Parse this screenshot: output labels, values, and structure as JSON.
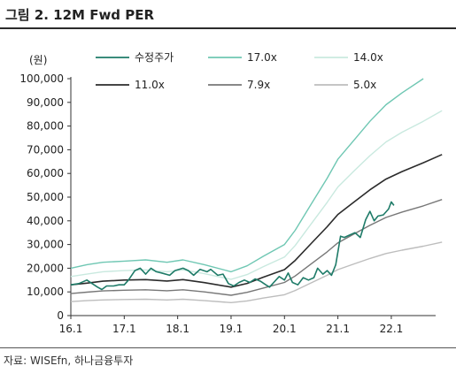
{
  "title": "그림 2. 12M Fwd PER",
  "source": "자료: WISEfn, 하나금융투자",
  "chart_data": {
    "type": "line",
    "unit_label": "(원)",
    "ylim": [
      0,
      100000
    ],
    "yticks": [
      0,
      10000,
      20000,
      30000,
      40000,
      50000,
      60000,
      70000,
      80000,
      90000,
      100000
    ],
    "ytick_labels": [
      "0",
      "10,000",
      "20,000",
      "30,000",
      "40,000",
      "50,000",
      "60,000",
      "70,000",
      "80,000",
      "90,000",
      "100,000"
    ],
    "xlim": [
      2016.0,
      2022.83
    ],
    "xticks": [
      2016.0,
      2017.0,
      2018.0,
      2019.0,
      2020.0,
      2021.0,
      2022.0
    ],
    "xtick_labels": [
      "16.1",
      "17.1",
      "18.1",
      "19.1",
      "20.1",
      "21.1",
      "22.1"
    ],
    "legend_position": "top",
    "series": [
      {
        "name": "수정주가",
        "color": "#1e7b68",
        "width": 1.6,
        "points": [
          [
            2016.0,
            13000
          ],
          [
            2016.15,
            13500
          ],
          [
            2016.3,
            15000
          ],
          [
            2016.4,
            13500
          ],
          [
            2016.5,
            12000
          ],
          [
            2016.58,
            11000
          ],
          [
            2016.67,
            12500
          ],
          [
            2016.8,
            12500
          ],
          [
            2016.9,
            13000
          ],
          [
            2017.0,
            13000
          ],
          [
            2017.08,
            15000
          ],
          [
            2017.2,
            19000
          ],
          [
            2017.3,
            20000
          ],
          [
            2017.4,
            17500
          ],
          [
            2017.5,
            20000
          ],
          [
            2017.6,
            18500
          ],
          [
            2017.7,
            18000
          ],
          [
            2017.85,
            17000
          ],
          [
            2017.95,
            19000
          ],
          [
            2018.1,
            20000
          ],
          [
            2018.2,
            19000
          ],
          [
            2018.3,
            17000
          ],
          [
            2018.42,
            19500
          ],
          [
            2018.55,
            18500
          ],
          [
            2018.62,
            19500
          ],
          [
            2018.75,
            17000
          ],
          [
            2018.85,
            17500
          ],
          [
            2018.95,
            13500
          ],
          [
            2019.05,
            12500
          ],
          [
            2019.15,
            14000
          ],
          [
            2019.25,
            15000
          ],
          [
            2019.35,
            14000
          ],
          [
            2019.45,
            15500
          ],
          [
            2019.55,
            14500
          ],
          [
            2019.65,
            13000
          ],
          [
            2019.72,
            12000
          ],
          [
            2019.8,
            14000
          ],
          [
            2019.9,
            16500
          ],
          [
            2020.0,
            15000
          ],
          [
            2020.07,
            18000
          ],
          [
            2020.15,
            14000
          ],
          [
            2020.25,
            13000
          ],
          [
            2020.35,
            16000
          ],
          [
            2020.45,
            15000
          ],
          [
            2020.55,
            16000
          ],
          [
            2020.62,
            20000
          ],
          [
            2020.72,
            17500
          ],
          [
            2020.8,
            19000
          ],
          [
            2020.88,
            17000
          ],
          [
            2020.96,
            21500
          ],
          [
            2021.05,
            33500
          ],
          [
            2021.12,
            33000
          ],
          [
            2021.22,
            34000
          ],
          [
            2021.32,
            35000
          ],
          [
            2021.42,
            33000
          ],
          [
            2021.52,
            40500
          ],
          [
            2021.6,
            44000
          ],
          [
            2021.68,
            40000
          ],
          [
            2021.75,
            42000
          ],
          [
            2021.85,
            42500
          ],
          [
            2021.95,
            45000
          ],
          [
            2022.0,
            48000
          ],
          [
            2022.05,
            46500
          ]
        ]
      },
      {
        "name": "17.0x",
        "color": "#6fc7b3",
        "width": 1.4,
        "points": [
          [
            2016.0,
            20000
          ],
          [
            2016.3,
            21500
          ],
          [
            2016.6,
            22500
          ],
          [
            2017.0,
            23000
          ],
          [
            2017.4,
            23500
          ],
          [
            2017.8,
            22500
          ],
          [
            2018.1,
            23500
          ],
          [
            2018.5,
            21500
          ],
          [
            2019.0,
            18500
          ],
          [
            2019.3,
            21000
          ],
          [
            2019.6,
            25000
          ],
          [
            2020.0,
            30000
          ],
          [
            2020.2,
            36000
          ],
          [
            2020.5,
            47000
          ],
          [
            2020.8,
            58000
          ],
          [
            2021.0,
            66000
          ],
          [
            2021.3,
            74000
          ],
          [
            2021.6,
            82000
          ],
          [
            2021.9,
            89000
          ],
          [
            2022.2,
            94000
          ],
          [
            2022.6,
            100000
          ]
        ]
      },
      {
        "name": "14.0x",
        "color": "#c9e9df",
        "width": 1.4,
        "points": [
          [
            2016.0,
            16500
          ],
          [
            2016.3,
            17500
          ],
          [
            2016.6,
            18500
          ],
          [
            2017.0,
            19000
          ],
          [
            2017.4,
            19300
          ],
          [
            2017.8,
            18500
          ],
          [
            2018.1,
            19300
          ],
          [
            2018.5,
            17700
          ],
          [
            2019.0,
            15300
          ],
          [
            2019.3,
            17300
          ],
          [
            2019.6,
            20600
          ],
          [
            2020.0,
            24700
          ],
          [
            2020.2,
            29600
          ],
          [
            2020.5,
            38700
          ],
          [
            2020.8,
            47800
          ],
          [
            2021.0,
            54300
          ],
          [
            2021.3,
            61000
          ],
          [
            2021.6,
            67500
          ],
          [
            2021.9,
            73300
          ],
          [
            2022.2,
            77400
          ],
          [
            2022.6,
            82000
          ],
          [
            2022.95,
            86500
          ]
        ]
      },
      {
        "name": "11.0x",
        "color": "#2b2b2b",
        "width": 1.6,
        "points": [
          [
            2016.0,
            13000
          ],
          [
            2016.3,
            13700
          ],
          [
            2016.6,
            14500
          ],
          [
            2017.0,
            15000
          ],
          [
            2017.4,
            15200
          ],
          [
            2017.8,
            14600
          ],
          [
            2018.1,
            15200
          ],
          [
            2018.5,
            13900
          ],
          [
            2019.0,
            12000
          ],
          [
            2019.3,
            13600
          ],
          [
            2019.6,
            16200
          ],
          [
            2020.0,
            19400
          ],
          [
            2020.2,
            23300
          ],
          [
            2020.5,
            30400
          ],
          [
            2020.8,
            37500
          ],
          [
            2021.0,
            42700
          ],
          [
            2021.3,
            47900
          ],
          [
            2021.6,
            53100
          ],
          [
            2021.9,
            57600
          ],
          [
            2022.2,
            60800
          ],
          [
            2022.6,
            64500
          ],
          [
            2022.95,
            68000
          ]
        ]
      },
      {
        "name": "7.9x",
        "color": "#777777",
        "width": 1.4,
        "points": [
          [
            2016.0,
            9300
          ],
          [
            2016.3,
            9900
          ],
          [
            2016.6,
            10400
          ],
          [
            2017.0,
            10700
          ],
          [
            2017.4,
            10900
          ],
          [
            2017.8,
            10500
          ],
          [
            2018.1,
            10900
          ],
          [
            2018.5,
            10000
          ],
          [
            2019.0,
            8600
          ],
          [
            2019.3,
            9800
          ],
          [
            2019.6,
            11600
          ],
          [
            2020.0,
            14000
          ],
          [
            2020.2,
            16700
          ],
          [
            2020.5,
            21800
          ],
          [
            2020.8,
            26900
          ],
          [
            2021.0,
            30700
          ],
          [
            2021.3,
            34400
          ],
          [
            2021.6,
            38100
          ],
          [
            2021.9,
            41400
          ],
          [
            2022.2,
            43700
          ],
          [
            2022.6,
            46300
          ],
          [
            2022.95,
            49000
          ]
        ]
      },
      {
        "name": "5.0x",
        "color": "#bdbdbd",
        "width": 1.4,
        "points": [
          [
            2016.0,
            5900
          ],
          [
            2016.3,
            6300
          ],
          [
            2016.6,
            6600
          ],
          [
            2017.0,
            6800
          ],
          [
            2017.4,
            6900
          ],
          [
            2017.8,
            6600
          ],
          [
            2018.1,
            6900
          ],
          [
            2018.5,
            6300
          ],
          [
            2019.0,
            5500
          ],
          [
            2019.3,
            6200
          ],
          [
            2019.6,
            7400
          ],
          [
            2020.0,
            8800
          ],
          [
            2020.2,
            10600
          ],
          [
            2020.5,
            13800
          ],
          [
            2020.8,
            17000
          ],
          [
            2021.0,
            19400
          ],
          [
            2021.3,
            21800
          ],
          [
            2021.6,
            24100
          ],
          [
            2021.9,
            26200
          ],
          [
            2022.2,
            27600
          ],
          [
            2022.6,
            29300
          ],
          [
            2022.95,
            31000
          ]
        ]
      }
    ]
  }
}
